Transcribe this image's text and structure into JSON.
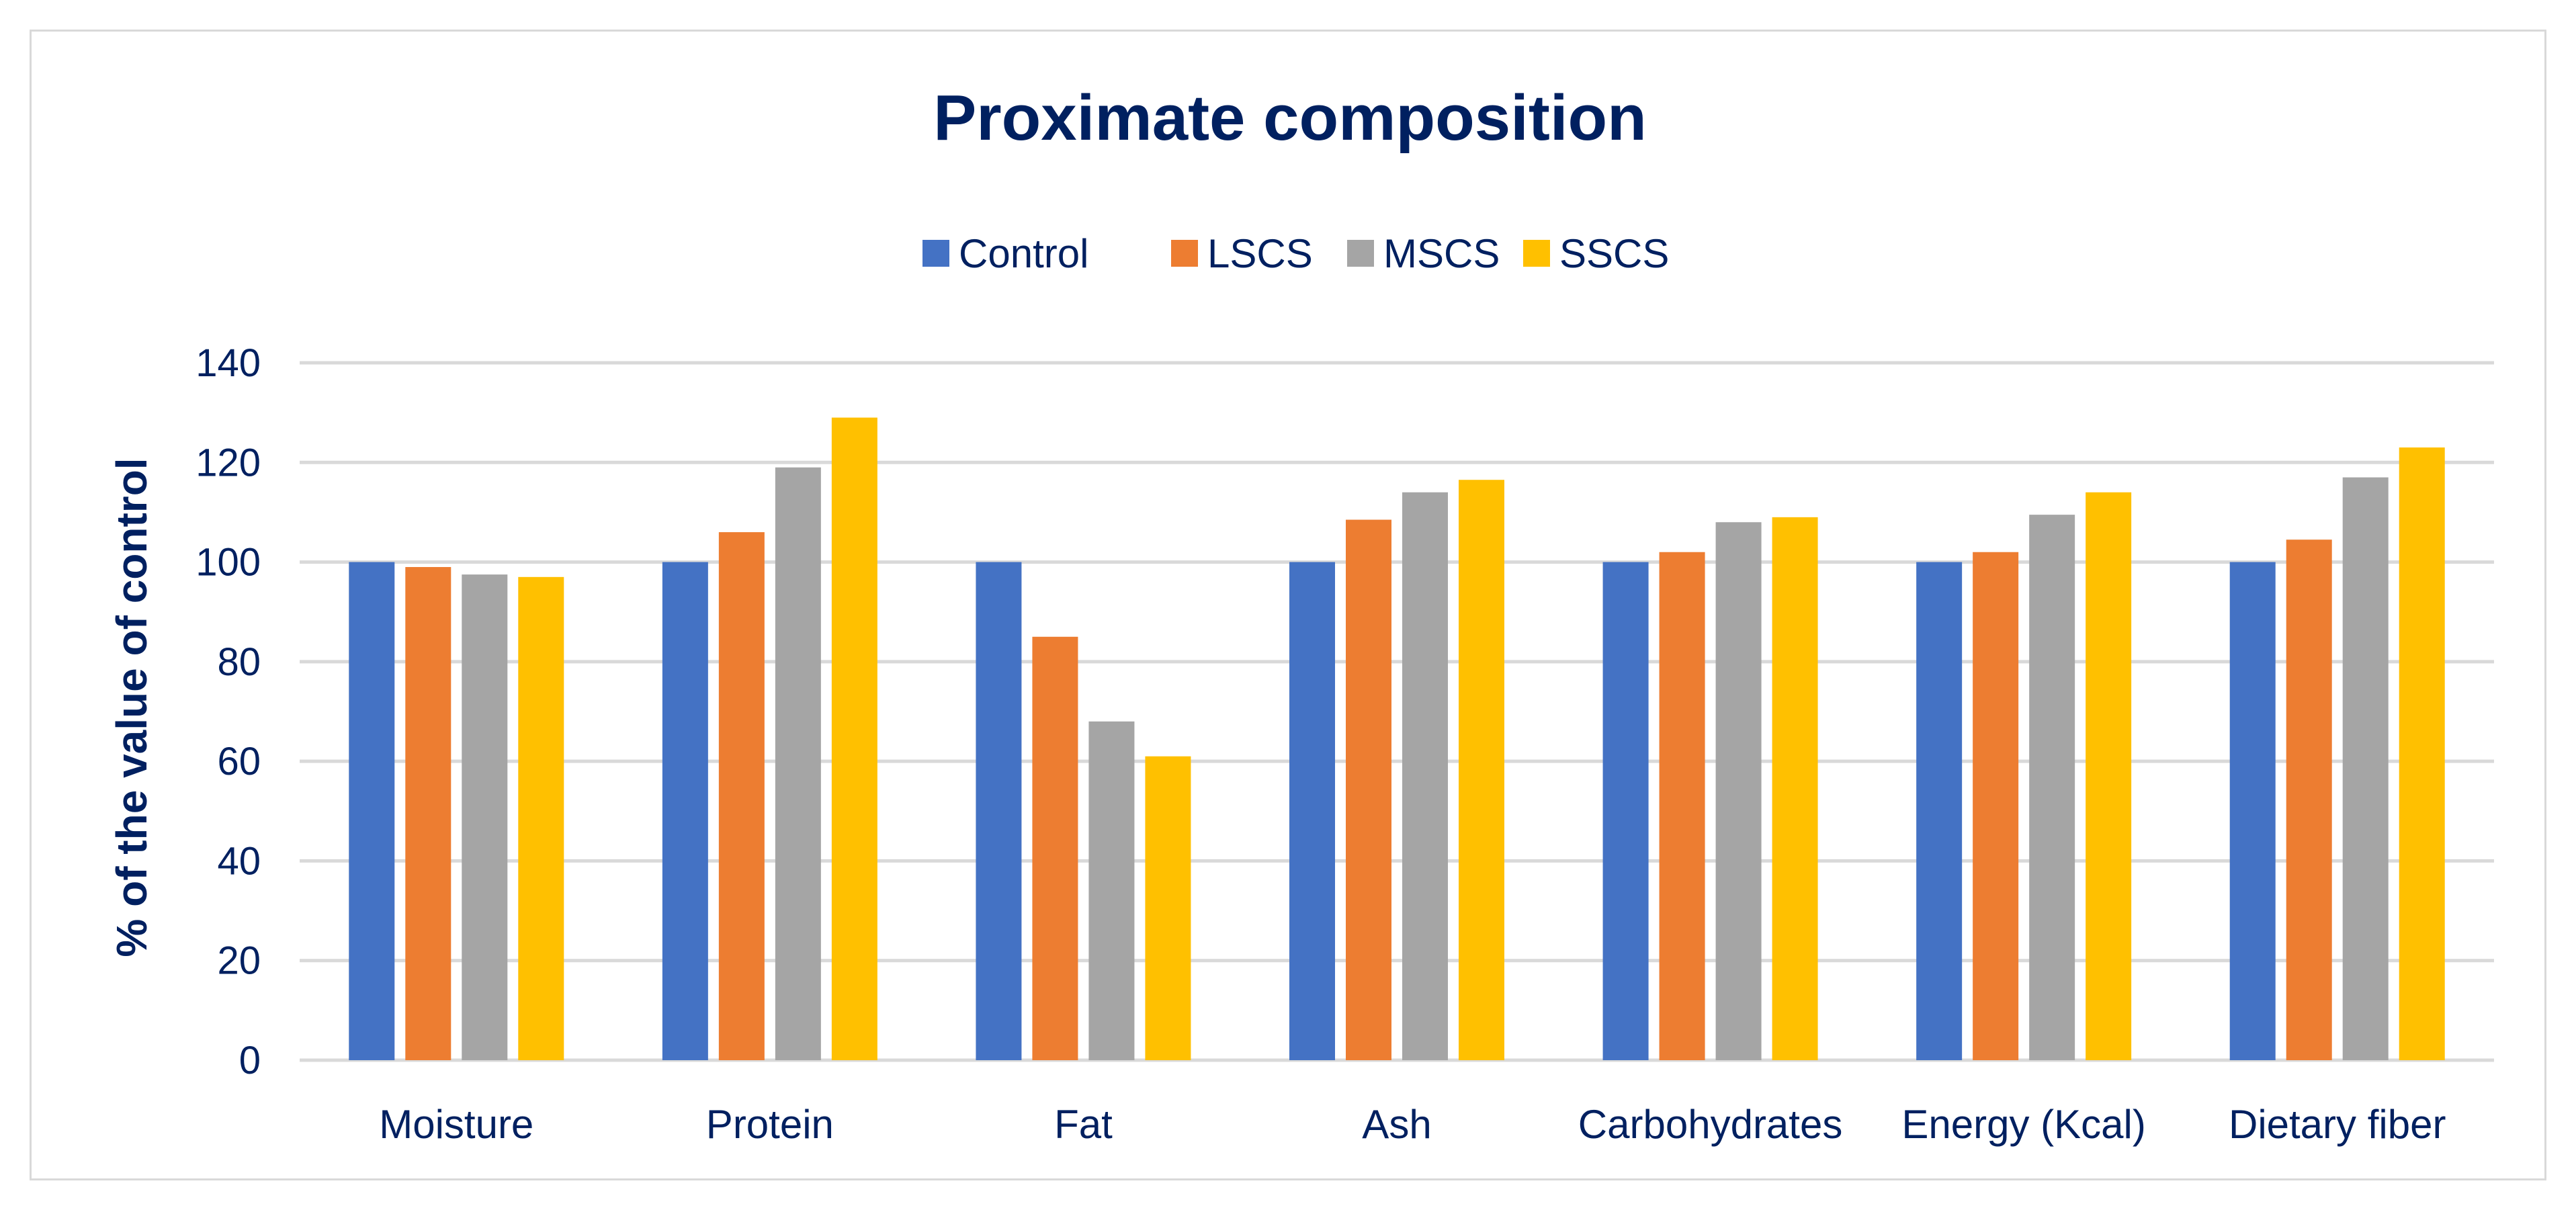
{
  "chart_data": {
    "type": "bar",
    "title": "Proximate composition",
    "xlabel": "",
    "ylabel": "% of the value of control",
    "ylim": [
      0,
      140
    ],
    "yticks": [
      0,
      20,
      40,
      60,
      80,
      100,
      120,
      140
    ],
    "grid": true,
    "legend_position": "top-center",
    "categories": [
      "Moisture",
      "Protein",
      "Fat",
      "Ash",
      "Carbohydrates",
      "Energy (Kcal)",
      "Dietary fiber"
    ],
    "series": [
      {
        "name": "Control",
        "color": "#4472c4",
        "values": [
          100,
          100,
          100,
          100,
          100,
          100,
          100
        ]
      },
      {
        "name": "LSCS",
        "color": "#ed7d31",
        "values": [
          99,
          106,
          85,
          108.5,
          102,
          102,
          104.5
        ]
      },
      {
        "name": "MSCS",
        "color": "#a5a5a5",
        "values": [
          97.5,
          119,
          68,
          114,
          108,
          109.5,
          117
        ]
      },
      {
        "name": "SSCS",
        "color": "#ffc000",
        "values": [
          97,
          129,
          61,
          116.5,
          109,
          114,
          123
        ]
      }
    ]
  },
  "colors": {
    "text": "#002060",
    "gridline": "#d9d9d9",
    "frame_border": "#d9d9d9"
  }
}
